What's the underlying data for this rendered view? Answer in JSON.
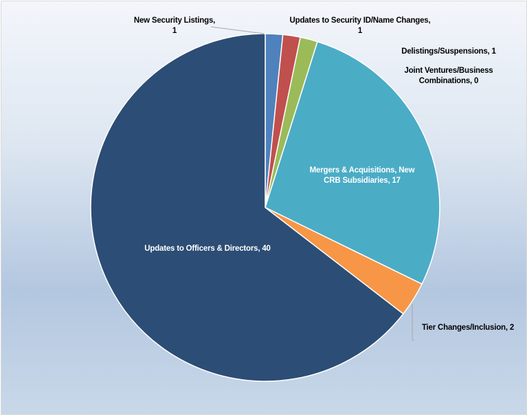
{
  "chart_data": {
    "type": "pie",
    "title": "",
    "categories": [
      "New Security Listings",
      "Updates to Security ID/Name Changes",
      "Delistings/Suspensions",
      "Joint Ventures/Business Combinations",
      "Mergers & Acquisitions, New CRB Subsidiaries",
      "Tier Changes/Inclusion",
      "Updates to Officers & Directors"
    ],
    "values": [
      1,
      1,
      1,
      0,
      17,
      2,
      40
    ],
    "colors": [
      "#4f81bd",
      "#c0504d",
      "#9bbb59",
      "#8064a2",
      "#4bacc6",
      "#f79646",
      "#2c4d75"
    ],
    "start_angle_deg": 0,
    "direction": "clockwise",
    "legend": "none (data labels)",
    "data_labels_show": "category name, value"
  },
  "labels": {
    "new_listings_line1": "New Security Listings,",
    "new_listings_line2": "1",
    "security_id_line1": "Updates to Security ID/Name Changes,",
    "security_id_line2": "1",
    "delistings": "Delistings/Suspensions, 1",
    "joint_ventures_line1": "Joint Ventures/Business",
    "joint_ventures_line2": "Combinations, 0",
    "ma_line1": "Mergers & Acquisitions, New",
    "ma_line2": "CRB Subsidiaries, 17",
    "tier": "Tier Changes/Inclusion, 2",
    "officers": "Updates to Officers & Directors, 40"
  }
}
